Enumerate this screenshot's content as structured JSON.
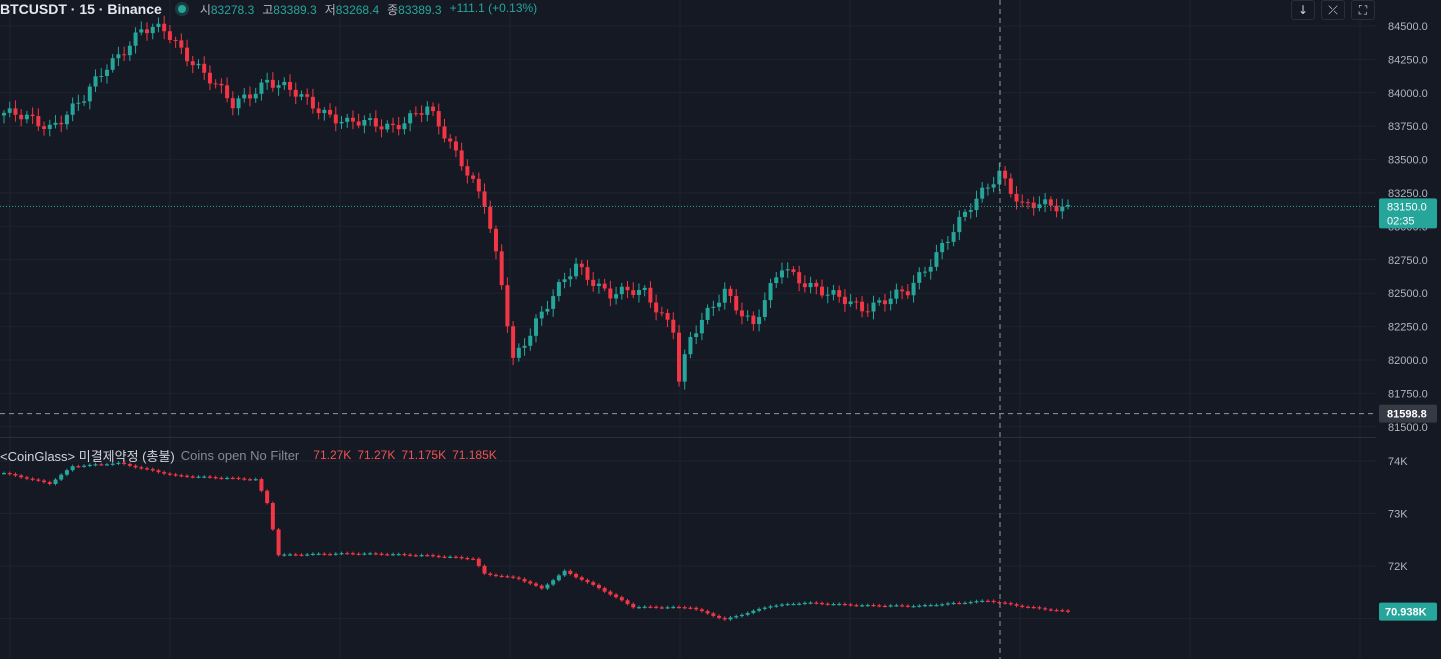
{
  "header": {
    "symbol": "BTCUSDT · 15 · Binance",
    "open_label": "시",
    "open": "83278.3",
    "high_label": "고",
    "high": "83389.3",
    "low_label": "저",
    "low": "83268.4",
    "close_label": "종",
    "close": "83389.3",
    "change": "+111.1 (+0.13%)"
  },
  "toolbar": {
    "down_icon": "↓",
    "collapse_icon": "⤫",
    "fullscreen_icon": "⛶"
  },
  "price_axis": {
    "ticks": [
      "84500.0",
      "84250.0",
      "84000.0",
      "83750.0",
      "83500.0",
      "83250.0",
      "83000.0",
      "82750.0",
      "82500.0",
      "82250.0",
      "82000.0",
      "81750.0",
      "81500.0"
    ],
    "current_price": "83150.0",
    "countdown": "02:35",
    "crosshair_price": "81598.8"
  },
  "indicator": {
    "name": "<CoinGlass> 미결제약정 (총불)",
    "subtitle": "Coins open No Filter",
    "values": [
      "71.27K",
      "71.27K",
      "71.175K",
      "71.185K"
    ],
    "axis_ticks": [
      "74K",
      "73K",
      "72K"
    ],
    "current_value": "70.938K"
  },
  "colors": {
    "background": "#151924",
    "up": "#26a69a",
    "down": "#f23645",
    "grid": "#1e222d",
    "text": "#b2b5be"
  }
}
